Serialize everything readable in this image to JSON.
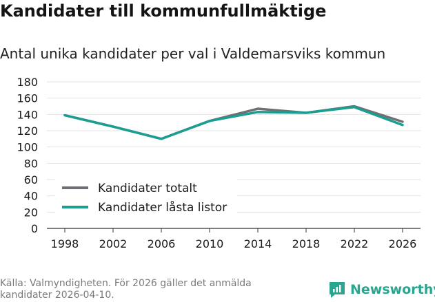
{
  "chart_data": {
    "type": "line",
    "title": "Kandidater till kommunfullmäktige",
    "subtitle": "Antal unika kandidater per val i Valdemarsviks kommun",
    "x": [
      "1998",
      "2002",
      "2006",
      "2010",
      "2014",
      "2018",
      "2022",
      "2026"
    ],
    "series": [
      {
        "name": "Kandidater totalt",
        "color": "#6e6e73",
        "values": [
          139,
          125,
          110,
          132,
          147,
          142,
          150,
          131
        ]
      },
      {
        "name": "Kandidater låsta listor",
        "color": "#1a9e92",
        "values": [
          139,
          125,
          110,
          132,
          143,
          142,
          149,
          127
        ]
      }
    ],
    "yticks": [
      "0",
      "20",
      "40",
      "60",
      "80",
      "100",
      "120",
      "140",
      "160",
      "180"
    ],
    "ylim": [
      0,
      180
    ],
    "legend_position": "bottom-left",
    "grid": true
  },
  "footer": {
    "source": "Källa: Valmyndigheten. För 2026 gäller det anmälda kandidater 2026-04-10."
  },
  "brand": {
    "name": "Newsworthy",
    "color": "#2aa58f"
  }
}
